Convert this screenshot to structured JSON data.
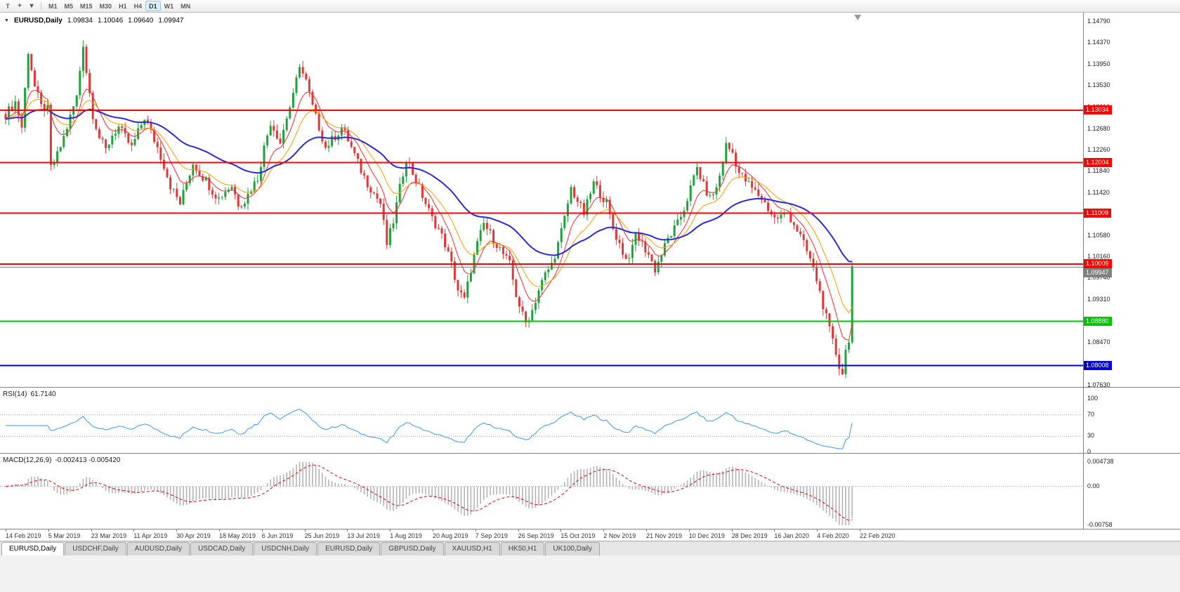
{
  "toolbar": {
    "tool_label": "T",
    "crosshair_icon": "+",
    "dropdown_icon": "▾",
    "timeframes": [
      "M1",
      "M5",
      "M15",
      "M30",
      "H1",
      "H4",
      "D1",
      "W1",
      "MN"
    ],
    "active_timeframe": "D1"
  },
  "chart": {
    "header": {
      "arrow": "▼",
      "symbol": "EURUSD,Daily",
      "open": "1.09834",
      "high": "1.10046",
      "low": "1.09640",
      "close": "1.09947"
    }
  },
  "chart_data": {
    "type": "candlestick",
    "symbol": "EURUSD",
    "timeframe": "Daily",
    "bars": 263,
    "noise": 0.0018,
    "price_range": {
      "top": 1.1479,
      "bottom": 1.0763
    },
    "price_axis_ticks": [
      "1.14790",
      "1.14370",
      "1.13950",
      "1.13530",
      "1.13110",
      "1.12680",
      "1.12260",
      "1.11840",
      "1.11420",
      "1.11000",
      "1.10580",
      "1.10160",
      "1.09740",
      "1.09310",
      "1.08890",
      "1.08470",
      "1.08050",
      "1.07630"
    ],
    "levels": [
      {
        "value": 1.13034,
        "label": "1.13034",
        "color": "#ff0000",
        "width": 2
      },
      {
        "value": 1.12004,
        "label": "1.12004",
        "color": "#ff0000",
        "width": 2
      },
      {
        "value": 1.11009,
        "label": "1.11009",
        "color": "#ff0000",
        "width": 2
      },
      {
        "value": 1.10009,
        "label": "1.10009",
        "color": "#ff0000",
        "width": 2
      },
      {
        "value": 1.0888,
        "label": "1.08880",
        "color": "#00c400",
        "width": 2
      },
      {
        "value": 1.08008,
        "label": "1.08008",
        "color": "#0000c8",
        "width": 2
      }
    ],
    "current_price": {
      "value": 1.09947,
      "label": "1.09947",
      "color": "#808080"
    },
    "candle_colors": {
      "up": "#1da33c",
      "down": "#df3838"
    },
    "moving_averages": [
      {
        "period": 8,
        "color": "#ff2a2a",
        "width": 1
      },
      {
        "period": 16,
        "color": "#ff9c00",
        "width": 1
      },
      {
        "period": 45,
        "color": "#2b2bd4",
        "width": 2
      }
    ],
    "series_anchors": [
      [
        0,
        1.1295
      ],
      [
        3,
        1.132
      ],
      [
        5,
        1.127
      ],
      [
        7,
        1.142
      ],
      [
        9,
        1.135
      ],
      [
        11,
        1.131
      ],
      [
        13,
        1.1305
      ],
      [
        14,
        1.119
      ],
      [
        16,
        1.1215
      ],
      [
        18,
        1.125
      ],
      [
        20,
        1.129
      ],
      [
        22,
        1.133
      ],
      [
        24,
        1.1435
      ],
      [
        25,
        1.138
      ],
      [
        27,
        1.1295
      ],
      [
        29,
        1.125
      ],
      [
        31,
        1.1225
      ],
      [
        33,
        1.1255
      ],
      [
        35,
        1.127
      ],
      [
        37,
        1.125
      ],
      [
        39,
        1.123
      ],
      [
        41,
        1.126
      ],
      [
        43,
        1.129
      ],
      [
        45,
        1.126
      ],
      [
        47,
        1.123
      ],
      [
        49,
        1.1195
      ],
      [
        51,
        1.1155
      ],
      [
        54,
        1.112
      ],
      [
        56,
        1.116
      ],
      [
        58,
        1.12
      ],
      [
        60,
        1.118
      ],
      [
        62,
        1.1165
      ],
      [
        64,
        1.1145
      ],
      [
        66,
        1.113
      ],
      [
        68,
        1.1145
      ],
      [
        70,
        1.1155
      ],
      [
        72,
        1.112
      ],
      [
        74,
        1.1125
      ],
      [
        76,
        1.115
      ],
      [
        78,
        1.117
      ],
      [
        80,
        1.123
      ],
      [
        82,
        1.128
      ],
      [
        84,
        1.1255
      ],
      [
        85,
        1.124
      ],
      [
        87,
        1.129
      ],
      [
        89,
        1.133
      ],
      [
        91,
        1.1395
      ],
      [
        92,
        1.1375
      ],
      [
        93,
        1.136
      ],
      [
        95,
        1.131
      ],
      [
        97,
        1.127
      ],
      [
        99,
        1.123
      ],
      [
        101,
        1.1245
      ],
      [
        103,
        1.126
      ],
      [
        104,
        1.127
      ],
      [
        106,
        1.1245
      ],
      [
        108,
        1.1215
      ],
      [
        110,
        1.1185
      ],
      [
        112,
        1.116
      ],
      [
        114,
        1.114
      ],
      [
        116,
        1.112
      ],
      [
        118,
        1.104
      ],
      [
        120,
        1.1085
      ],
      [
        122,
        1.115
      ],
      [
        124,
        1.121
      ],
      [
        126,
        1.118
      ],
      [
        128,
        1.115
      ],
      [
        130,
        1.112
      ],
      [
        132,
        1.109
      ],
      [
        134,
        1.107
      ],
      [
        136,
        1.104
      ],
      [
        138,
        1.1
      ],
      [
        140,
        1.095
      ],
      [
        142,
        1.093
      ],
      [
        144,
        1.099
      ],
      [
        146,
        1.104
      ],
      [
        148,
        1.108
      ],
      [
        150,
        1.106
      ],
      [
        152,
        1.104
      ],
      [
        154,
        1.102
      ],
      [
        156,
        1.1
      ],
      [
        158,
        1.094
      ],
      [
        160,
        1.09
      ],
      [
        161,
        1.0885
      ],
      [
        163,
        1.091
      ],
      [
        165,
        1.095
      ],
      [
        167,
        1.098
      ],
      [
        169,
        1.1
      ],
      [
        171,
        1.104
      ],
      [
        173,
        1.109
      ],
      [
        175,
        1.115
      ],
      [
        177,
        1.1125
      ],
      [
        179,
        1.11
      ],
      [
        181,
        1.114
      ],
      [
        182,
        1.116
      ],
      [
        184,
        1.114
      ],
      [
        186,
        1.112
      ],
      [
        188,
        1.107
      ],
      [
        190,
        1.104
      ],
      [
        192,
        1.101
      ],
      [
        194,
        1.103
      ],
      [
        195,
        1.106
      ],
      [
        197,
        1.104
      ],
      [
        199,
        1.102
      ],
      [
        201,
        1.099
      ],
      [
        203,
        1.102
      ],
      [
        205,
        1.105
      ],
      [
        207,
        1.107
      ],
      [
        208,
        1.108
      ],
      [
        210,
        1.111
      ],
      [
        212,
        1.115
      ],
      [
        214,
        1.119
      ],
      [
        216,
        1.1155
      ],
      [
        218,
        1.113
      ],
      [
        220,
        1.115
      ],
      [
        221,
        1.1175
      ],
      [
        223,
        1.1235
      ],
      [
        225,
        1.122
      ],
      [
        227,
        1.118
      ],
      [
        229,
        1.1165
      ],
      [
        231,
        1.115
      ],
      [
        234,
        1.113
      ],
      [
        236,
        1.111
      ],
      [
        238,
        1.109
      ],
      [
        240,
        1.1095
      ],
      [
        242,
        1.11
      ],
      [
        244,
        1.108
      ],
      [
        246,
        1.1055
      ],
      [
        247,
        1.104
      ],
      [
        249,
        1.101
      ],
      [
        251,
        1.097
      ],
      [
        253,
        1.092
      ],
      [
        255,
        1.087
      ],
      [
        257,
        1.0825
      ],
      [
        258,
        1.08
      ],
      [
        259,
        1.0787
      ],
      [
        260,
        1.083
      ],
      [
        261,
        1.0855
      ],
      [
        262,
        1.0995
      ]
    ],
    "date_labels": [
      "14 Feb 2019",
      "5 Mar 2019",
      "23 Mar 2019",
      "11 Apr 2019",
      "30 Apr 2019",
      "18 May 2019",
      "6 Jun 2019",
      "25 Jun 2019",
      "13 Jul 2019",
      "1 Aug 2019",
      "20 Aug 2019",
      "7 Sep 2019",
      "26 Sep 2019",
      "15 Oct 2019",
      "2 Nov 2019",
      "21 Nov 2019",
      "10 Dec 2019",
      "28 Dec 2019",
      "16 Jan 2020",
      "4 Feb 2020",
      "22 Feb 2020"
    ]
  },
  "rsi": {
    "name": "RSI(14)",
    "value": "61.7140",
    "period": 14,
    "line_color": "#3e97e8",
    "axis_labels": [
      "100",
      "70",
      "30",
      "0"
    ],
    "upper_level": 70,
    "lower_level": 30
  },
  "macd": {
    "name": "MACD(12,26,9)",
    "values": "-0.002413 -0.005420",
    "fast": 12,
    "slow": 26,
    "signal": 9,
    "histogram_color": "#b4b4b4",
    "signal_color": "#e00000",
    "axis_labels": [
      {
        "label": "0.004738",
        "value": 0.004738
      },
      {
        "label": "0.00",
        "value": 0
      },
      {
        "label": "-0.00758",
        "value": -0.00758
      }
    ],
    "range": {
      "top": 0.004738,
      "bottom": -0.00758
    }
  },
  "tabs": [
    {
      "label": "EURUSD,Daily",
      "active": true
    },
    {
      "label": "USDCHF,Daily",
      "active": false
    },
    {
      "label": "AUDUSD,Daily",
      "active": false
    },
    {
      "label": "USDCAD,Daily",
      "active": false
    },
    {
      "label": "USDCNH,Daily",
      "active": false
    },
    {
      "label": "EURUSD,Daily",
      "active": false
    },
    {
      "label": "GBPUSD,Daily",
      "active": false
    },
    {
      "label": "XAUUSD,H1",
      "active": false
    },
    {
      "label": "HK50,H1",
      "active": false
    },
    {
      "label": "UK100,Daily",
      "active": false
    }
  ]
}
